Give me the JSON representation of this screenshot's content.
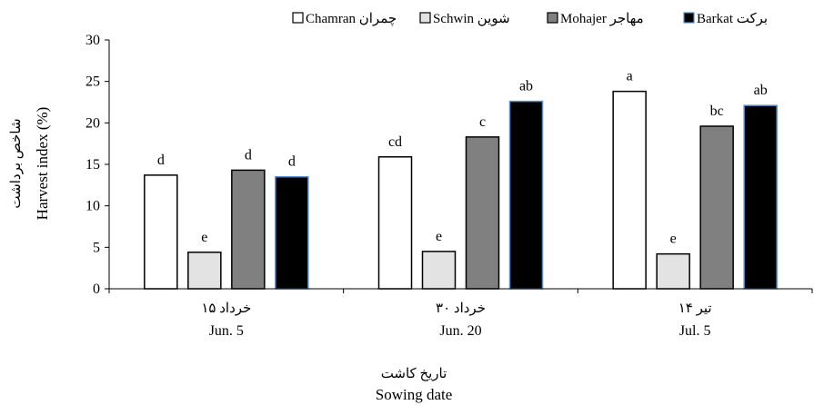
{
  "chart_data": {
    "type": "bar",
    "categories": [
      {
        "fa": "۱۵ خرداد",
        "en": "Jun. 5"
      },
      {
        "fa": "۳۰ خرداد",
        "en": "Jun. 20"
      },
      {
        "fa": "۱۴ تیر",
        "en": "Jul. 5"
      }
    ],
    "series": [
      {
        "name": "Chamran چمران",
        "fill": "#ffffff",
        "stroke": "#000000",
        "values": [
          13.7,
          15.9,
          23.8
        ],
        "letters": [
          "d",
          "cd",
          "a"
        ]
      },
      {
        "name": "Schwin شوین",
        "fill": "#e3e3e3",
        "stroke": "#000000",
        "values": [
          4.4,
          4.5,
          4.2
        ],
        "letters": [
          "e",
          "e",
          "e"
        ]
      },
      {
        "name": "Mohajer مهاجر",
        "fill": "#808080",
        "stroke": "#000000",
        "values": [
          14.3,
          18.3,
          19.6
        ],
        "letters": [
          "d",
          "c",
          "bc"
        ]
      },
      {
        "name": "Barkat برکت",
        "fill": "#000000",
        "stroke": "#5b8ec9",
        "values": [
          13.5,
          22.6,
          22.1
        ],
        "letters": [
          "d",
          "ab",
          "ab"
        ]
      }
    ],
    "ylabel_fa": "شاخص برداشت",
    "ylabel_en": "Harvest index (%)",
    "xlabel_fa": "تاریخ کاشت",
    "xlabel_en": "Sowing date",
    "ylim": [
      0,
      30
    ],
    "yticks": [
      0,
      5,
      10,
      15,
      20,
      25,
      30
    ],
    "grid": false,
    "legend_position": "top"
  }
}
